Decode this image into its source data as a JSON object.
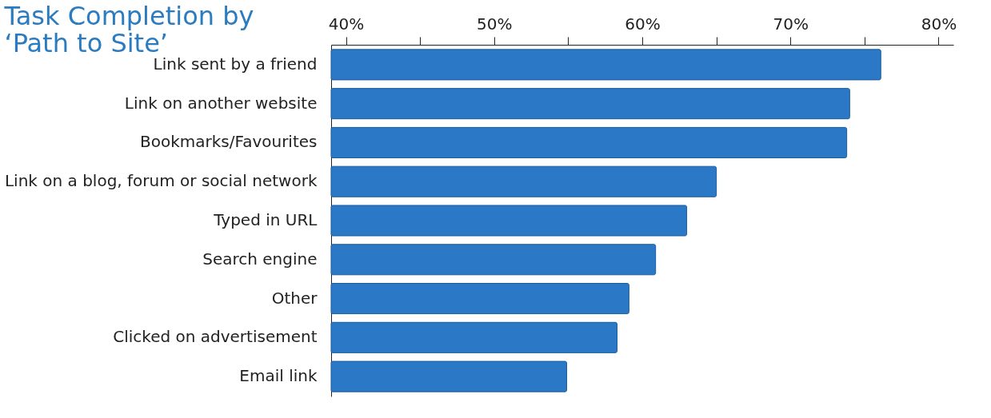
{
  "chart_data": {
    "type": "bar",
    "orientation": "horizontal",
    "title": [
      "Task Completion by",
      "‘Path to Site’"
    ],
    "categories": [
      "Link sent by a friend",
      "Link on another website",
      "Bookmarks/Favourites",
      "Link on a blog, forum or social network",
      "Typed in URL",
      "Search engine",
      "Other",
      "Clicked on advertisement",
      "Email link"
    ],
    "values": [
      76.1,
      74.0,
      73.8,
      65.0,
      63.0,
      60.9,
      59.1,
      58.3,
      54.9
    ],
    "color": "#2b79c6",
    "xlim": [
      39,
      81
    ],
    "xticks": [
      {
        "value": 40,
        "label": "40%"
      },
      {
        "value": 45,
        "label": null
      },
      {
        "value": 50,
        "label": "50%"
      },
      {
        "value": 55,
        "label": null
      },
      {
        "value": 60,
        "label": "60%"
      },
      {
        "value": 65,
        "label": null
      },
      {
        "value": 70,
        "label": "70%"
      },
      {
        "value": 75,
        "label": null
      },
      {
        "value": 80,
        "label": "80%"
      }
    ],
    "grid": false
  }
}
